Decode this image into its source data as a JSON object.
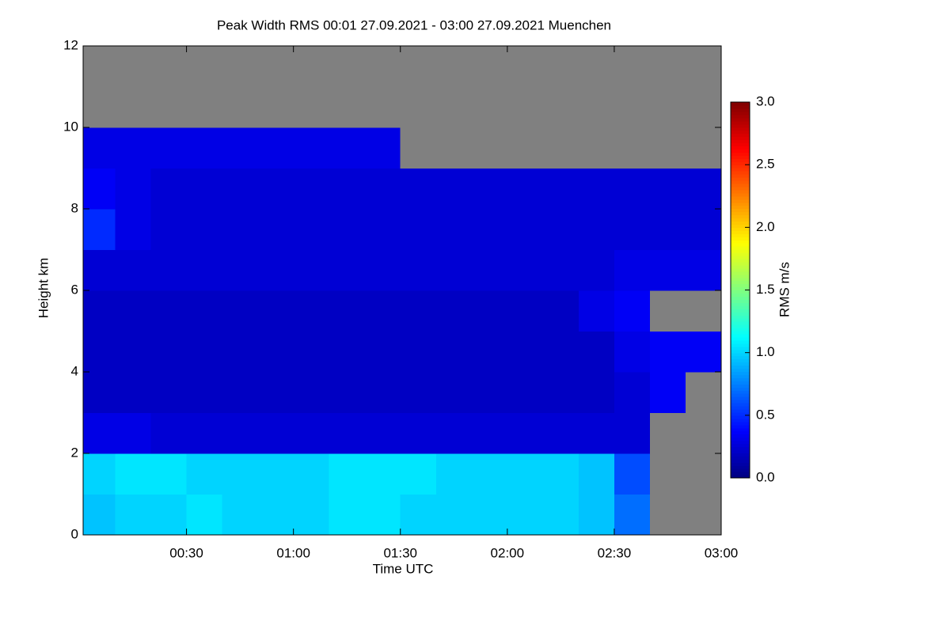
{
  "chart_data": {
    "type": "heatmap",
    "title": "Peak Width RMS   00:01 27.09.2021 - 03:00 27.09.2021 Muenchen",
    "x_label": "Time UTC",
    "y_label": "Height km",
    "colorbar_label": "RMS m/s",
    "xlim": [
      1,
      180
    ],
    "ylim": [
      0,
      12
    ],
    "xticks": [
      {
        "value": 30,
        "label": "00:30"
      },
      {
        "value": 60,
        "label": "01:00"
      },
      {
        "value": 90,
        "label": "01:30"
      },
      {
        "value": 120,
        "label": "02:00"
      },
      {
        "value": 150,
        "label": "02:30"
      },
      {
        "value": 180,
        "label": "03:00"
      }
    ],
    "yticks": [
      0,
      2,
      4,
      6,
      8,
      10,
      12
    ],
    "xbins": [
      1,
      10,
      20,
      30,
      40,
      50,
      60,
      70,
      80,
      90,
      100,
      110,
      120,
      130,
      140,
      150,
      160,
      170,
      180
    ],
    "ybins": [
      0,
      1,
      2,
      3,
      4,
      5,
      6,
      7,
      8,
      9,
      10,
      11,
      12
    ],
    "zlim": [
      0,
      3
    ],
    "zticks": [
      {
        "value": 0,
        "label": "0.0"
      },
      0.5,
      {
        "value": 1,
        "label": "1.0"
      },
      1.5,
      {
        "value": 2,
        "label": "2.0"
      },
      2.5,
      {
        "value": 3,
        "label": "3.0"
      }
    ],
    "colormap": "jet",
    "missing_color": "#808080",
    "z": [
      [
        0.95,
        1.0,
        1.0,
        1.05,
        1.0,
        1.0,
        1.0,
        1.05,
        1.05,
        1.0,
        1.0,
        1.0,
        1.0,
        1.0,
        0.95,
        0.7,
        null,
        null
      ],
      [
        1.0,
        1.05,
        1.05,
        1.0,
        1.0,
        1.0,
        1.0,
        1.05,
        1.05,
        1.05,
        1.0,
        1.0,
        1.0,
        1.0,
        0.95,
        0.6,
        null,
        null
      ],
      [
        0.3,
        0.3,
        0.25,
        0.25,
        0.25,
        0.25,
        0.25,
        0.25,
        0.25,
        0.25,
        0.25,
        0.25,
        0.25,
        0.25,
        0.25,
        0.25,
        null,
        null
      ],
      [
        0.2,
        0.2,
        0.2,
        0.2,
        0.2,
        0.2,
        0.2,
        0.2,
        0.2,
        0.2,
        0.2,
        0.2,
        0.2,
        0.2,
        0.2,
        0.25,
        0.35,
        null
      ],
      [
        0.2,
        0.2,
        0.2,
        0.2,
        0.2,
        0.2,
        0.2,
        0.2,
        0.2,
        0.2,
        0.2,
        0.2,
        0.2,
        0.2,
        0.2,
        0.3,
        0.35,
        0.35
      ],
      [
        0.2,
        0.2,
        0.2,
        0.2,
        0.2,
        0.2,
        0.2,
        0.2,
        0.2,
        0.2,
        0.2,
        0.2,
        0.2,
        0.2,
        0.3,
        0.35,
        null,
        null
      ],
      [
        0.25,
        0.25,
        0.25,
        0.25,
        0.25,
        0.25,
        0.25,
        0.25,
        0.25,
        0.25,
        0.25,
        0.25,
        0.25,
        0.25,
        0.25,
        0.3,
        0.3,
        0.3
      ],
      [
        0.5,
        0.3,
        0.25,
        0.25,
        0.25,
        0.25,
        0.25,
        0.25,
        0.25,
        0.25,
        0.25,
        0.25,
        0.25,
        0.25,
        0.25,
        0.25,
        0.25,
        0.25
      ],
      [
        0.35,
        0.3,
        0.25,
        0.25,
        0.25,
        0.25,
        0.25,
        0.25,
        0.25,
        0.25,
        0.25,
        0.25,
        0.25,
        0.25,
        0.25,
        0.25,
        0.25,
        0.25
      ],
      [
        0.3,
        0.3,
        0.3,
        0.3,
        0.3,
        0.3,
        0.3,
        0.3,
        0.3,
        null,
        null,
        null,
        null,
        null,
        null,
        null,
        null,
        null
      ],
      [
        null,
        null,
        null,
        null,
        null,
        null,
        null,
        null,
        null,
        null,
        null,
        null,
        null,
        null,
        null,
        null,
        null,
        null
      ],
      [
        null,
        null,
        null,
        null,
        null,
        null,
        null,
        null,
        null,
        null,
        null,
        null,
        null,
        null,
        null,
        null,
        null,
        null
      ]
    ]
  }
}
